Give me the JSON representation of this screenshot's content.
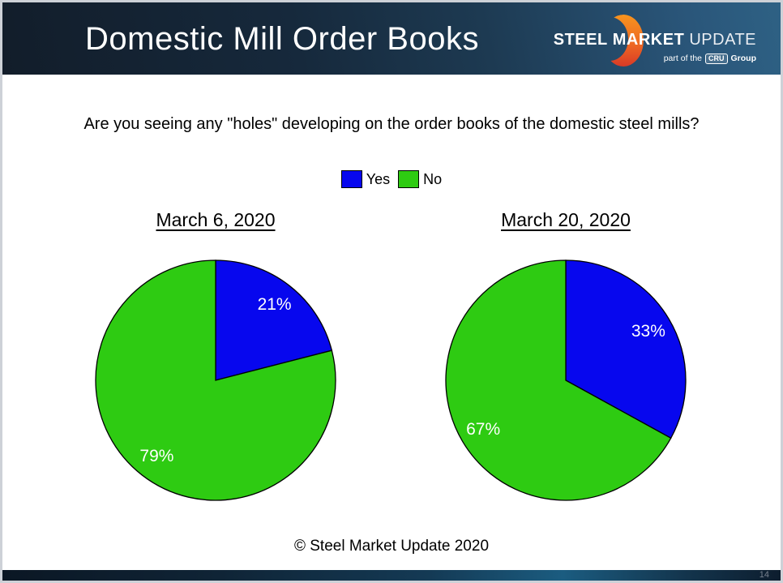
{
  "header": {
    "title": "Domestic Mill Order Books",
    "logo": {
      "steel": "STEEL",
      "market": "MARKET",
      "update": "UPDATE",
      "tagline_prefix": "part of the",
      "cru": "CRU",
      "tagline_suffix": "Group"
    }
  },
  "question": "Are you seeing any \"holes\" developing on the order books of the domestic steel mills?",
  "legend": {
    "items": [
      {
        "label": "Yes",
        "color": "#0707ee"
      },
      {
        "label": "No",
        "color": "#2ecb12"
      }
    ]
  },
  "chart_data": [
    {
      "type": "pie",
      "title": "March 6, 2020",
      "categories": [
        "Yes",
        "No"
      ],
      "values": [
        21,
        79
      ],
      "data_labels": [
        "21%",
        "79%"
      ],
      "colors": [
        "#0707ee",
        "#2ecb12"
      ],
      "start_angle": "12 o'clock",
      "direction": "clockwise",
      "outline_color": "#000000",
      "legend_position": "top-center-shared"
    },
    {
      "type": "pie",
      "title": "March 20, 2020",
      "categories": [
        "Yes",
        "No"
      ],
      "values": [
        33,
        67
      ],
      "data_labels": [
        "33%",
        "67%"
      ],
      "colors": [
        "#0707ee",
        "#2ecb12"
      ],
      "start_angle": "12 o'clock",
      "direction": "clockwise",
      "outline_color": "#000000",
      "legend_position": "top-center-shared"
    }
  ],
  "footer": {
    "copyright": "© Steel Market Update 2020"
  },
  "page": {
    "number": "14"
  }
}
